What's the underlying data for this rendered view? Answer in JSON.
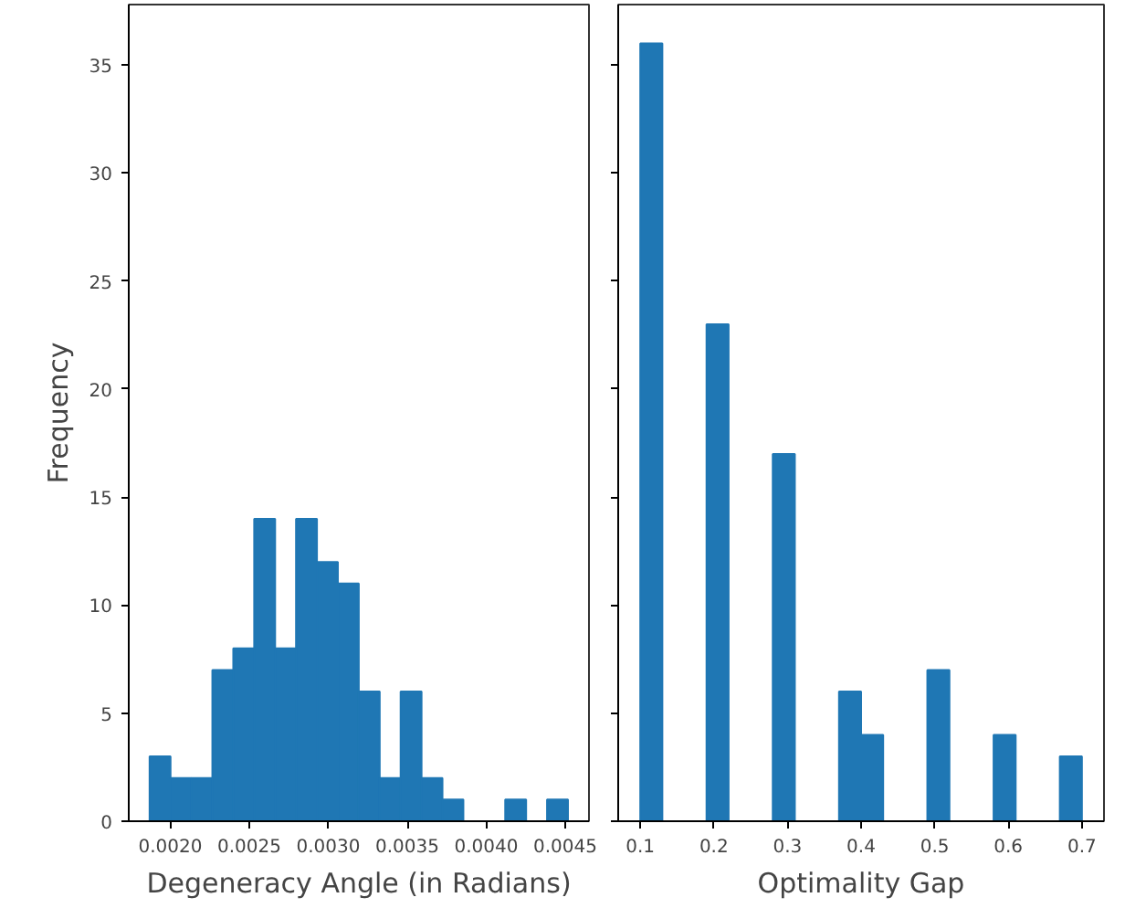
{
  "chart_data": [
    {
      "type": "histogram",
      "xlabel": "Degeneracy Angle (in Radians)",
      "ylabel": "Frequency",
      "color": "#1f77b4",
      "bins": [
        0.001869,
        0.0020014,
        0.0021338,
        0.0022662,
        0.0023986,
        0.002531,
        0.0026634,
        0.0027958,
        0.0029282,
        0.0030606,
        0.003193,
        0.0033254,
        0.0034578,
        0.0035902,
        0.0037226,
        0.003855,
        0.0039874,
        0.0041198,
        0.0042522,
        0.0043846,
        0.004517
      ],
      "values": [
        3,
        2,
        2,
        7,
        8,
        14,
        8,
        14,
        12,
        11,
        6,
        2,
        6,
        2,
        1,
        0,
        0,
        1,
        0,
        1
      ],
      "xlim": [
        0.001737,
        0.00465
      ],
      "xticks": [
        {
          "value": 0.002,
          "label": "0.0020"
        },
        {
          "value": 0.0025,
          "label": "0.0025"
        },
        {
          "value": 0.003,
          "label": "0.0030"
        },
        {
          "value": 0.0035,
          "label": "0.0035"
        },
        {
          "value": 0.004,
          "label": "0.0040"
        },
        {
          "value": 0.0045,
          "label": "0.0045"
        }
      ],
      "ylim": [
        0,
        37.8
      ],
      "yticks": [
        0,
        5,
        10,
        15,
        20,
        25,
        30,
        35
      ],
      "grid": false
    },
    {
      "type": "histogram",
      "xlabel": "Optimality Gap",
      "color": "#1f77b4",
      "bins": [
        0.1,
        0.13,
        0.16,
        0.19,
        0.22,
        0.25,
        0.28,
        0.31,
        0.34,
        0.37,
        0.4,
        0.43,
        0.46,
        0.49,
        0.52,
        0.55,
        0.58,
        0.61,
        0.64,
        0.67,
        0.7
      ],
      "values": [
        36,
        0,
        0,
        23,
        0,
        0,
        17,
        0,
        0,
        6,
        4,
        0,
        0,
        7,
        0,
        0,
        4,
        0,
        0,
        3
      ],
      "xlim": [
        0.07,
        0.73
      ],
      "xticks": [
        0.1,
        0.2,
        0.3,
        0.4,
        0.5,
        0.6,
        0.7
      ],
      "ylim": [
        0,
        37.8
      ],
      "yticks": [
        0,
        5,
        10,
        15,
        20,
        25,
        30,
        35
      ],
      "tick_labels": "x",
      "grid": false
    }
  ]
}
